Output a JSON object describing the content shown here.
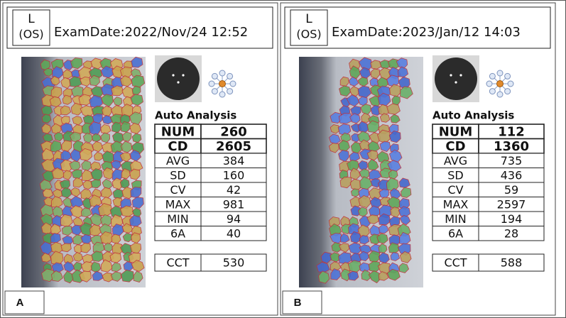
{
  "panels": [
    {
      "label": "A",
      "eye": {
        "side": "L",
        "code": "(OS)"
      },
      "exam_date": "ExamDate:2022/Nov/24 12:52",
      "analysis_title": "Auto Analysis",
      "table": {
        "rows": [
          [
            "NUM",
            260
          ],
          [
            "CD",
            2605
          ],
          [
            "AVG",
            384
          ],
          [
            "SD",
            160
          ],
          [
            "CV",
            42
          ],
          [
            "MAX",
            981
          ],
          [
            "MIN",
            94
          ],
          [
            "6A",
            40
          ]
        ]
      },
      "cct": [
        "CCT",
        530
      ]
    },
    {
      "label": "B",
      "eye": {
        "side": "L",
        "code": "(OS)"
      },
      "exam_date": "ExamDate:2023/Jan/12 14:03",
      "analysis_title": "Auto Analysis",
      "table": {
        "rows": [
          [
            "NUM",
            112
          ],
          [
            "CD",
            1360
          ],
          [
            "AVG",
            735
          ],
          [
            "SD",
            436
          ],
          [
            "CV",
            59
          ],
          [
            "MAX",
            2597
          ],
          [
            "MIN",
            194
          ],
          [
            "6A",
            28
          ]
        ]
      },
      "cct": [
        "CCT",
        588
      ]
    }
  ]
}
